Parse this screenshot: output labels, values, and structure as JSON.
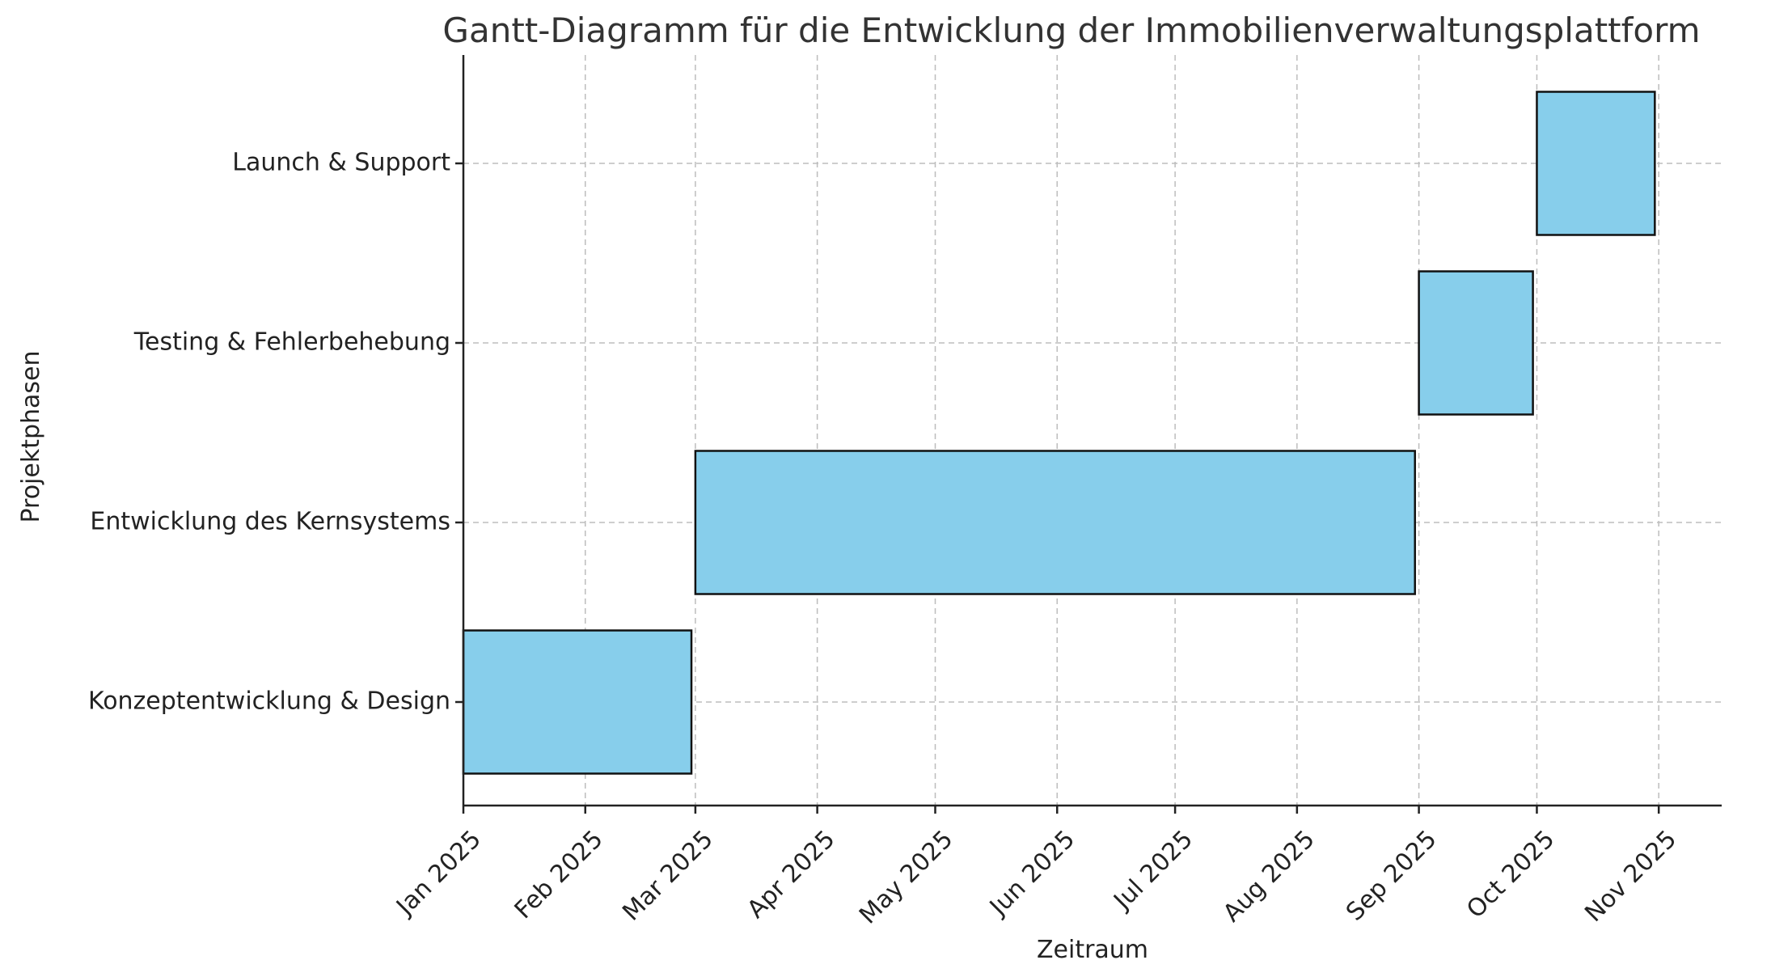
{
  "chart_data": {
    "type": "gantt",
    "title": "Gantt-Diagramm für die Entwicklung der Immobilienverwaltungsplattform",
    "xlabel": "Zeitraum",
    "ylabel": "Projektphasen",
    "grid": true,
    "xlim": [
      "2025-01-01",
      "2025-11-17"
    ],
    "x_ticks": [
      {
        "date": "2025-01-01",
        "label": "Jan 2025"
      },
      {
        "date": "2025-02-01",
        "label": "Feb 2025"
      },
      {
        "date": "2025-03-01",
        "label": "Mar 2025"
      },
      {
        "date": "2025-04-01",
        "label": "Apr 2025"
      },
      {
        "date": "2025-05-01",
        "label": "May 2025"
      },
      {
        "date": "2025-06-01",
        "label": "Jun 2025"
      },
      {
        "date": "2025-07-01",
        "label": "Jul 2025"
      },
      {
        "date": "2025-08-01",
        "label": "Aug 2025"
      },
      {
        "date": "2025-09-01",
        "label": "Sep 2025"
      },
      {
        "date": "2025-10-01",
        "label": "Oct 2025"
      },
      {
        "date": "2025-11-01",
        "label": "Nov 2025"
      }
    ],
    "tasks": [
      {
        "name": "Konzeptentwicklung & Design",
        "start": "2025-01-01",
        "end": "2025-02-28"
      },
      {
        "name": "Entwicklung des Kernsystems",
        "start": "2025-03-01",
        "end": "2025-08-31"
      },
      {
        "name": "Testing & Fehlerbehebung",
        "start": "2025-09-01",
        "end": "2025-09-30"
      },
      {
        "name": "Launch & Support",
        "start": "2025-10-01",
        "end": "2025-10-31"
      }
    ],
    "colors": {
      "bar": "#87ceeb",
      "bar_edge": "#111111"
    }
  }
}
